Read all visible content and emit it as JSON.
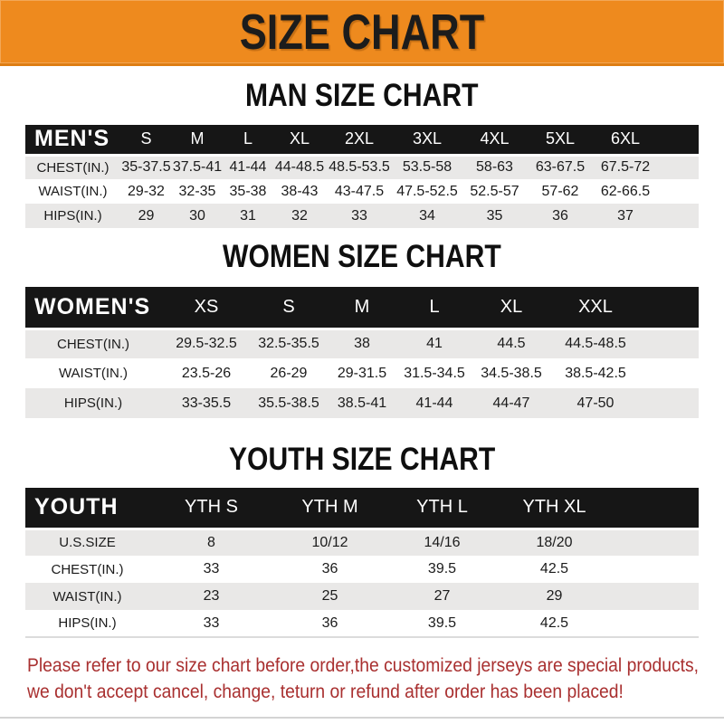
{
  "banner": {
    "title": "SIZE CHART"
  },
  "colors": {
    "banner_orange": "#EE8A1E",
    "banner_edge": "#DE7D12",
    "header_black": "#161616",
    "row_gray": "#E9E8E7",
    "row_white": "#FFFFFF",
    "footer_red": "#A93030"
  },
  "sections": {
    "men": {
      "heading": "MAN SIZE CHART",
      "table": {
        "corner_label": "MEN'S",
        "size_headers": [
          "S",
          "M",
          "L",
          "XL",
          "2XL",
          "3XL",
          "4XL",
          "5XL",
          "6XL"
        ],
        "rows": [
          {
            "label": "CHEST(IN.)",
            "values": [
              "35-37.5",
              "37.5-41",
              "41-44",
              "44-48.5",
              "48.5-53.5",
              "53.5-58",
              "58-63",
              "63-67.5",
              "67.5-72"
            ]
          },
          {
            "label": "WAIST(IN.)",
            "values": [
              "29-32",
              "32-35",
              "35-38",
              "38-43",
              "43-47.5",
              "47.5-52.5",
              "52.5-57",
              "57-62",
              "62-66.5"
            ]
          },
          {
            "label": "HIPS(IN.)",
            "values": [
              "29",
              "30",
              "31",
              "32",
              "33",
              "34",
              "35",
              "36",
              "37"
            ]
          }
        ]
      }
    },
    "women": {
      "heading": "WOMEN SIZE CHART",
      "table": {
        "corner_label": "WOMEN'S",
        "size_headers": [
          "XS",
          "S",
          "M",
          "L",
          "XL",
          "XXL"
        ],
        "rows": [
          {
            "label": "CHEST(IN.)",
            "values": [
              "29.5-32.5",
              "32.5-35.5",
              "38",
              "41",
              "44.5",
              "44.5-48.5"
            ]
          },
          {
            "label": "WAIST(IN.)",
            "values": [
              "23.5-26",
              "26-29",
              "29-31.5",
              "31.5-34.5",
              "34.5-38.5",
              "38.5-42.5"
            ]
          },
          {
            "label": "HIPS(IN.)",
            "values": [
              "33-35.5",
              "35.5-38.5",
              "38.5-41",
              "41-44",
              "44-47",
              "47-50"
            ]
          }
        ]
      }
    },
    "youth": {
      "heading": "YOUTH SIZE CHART",
      "table": {
        "corner_label": "YOUTH",
        "size_headers": [
          "YTH S",
          "YTH M",
          "YTH L",
          "YTH XL"
        ],
        "rows": [
          {
            "label": "U.S.SIZE",
            "values": [
              "8",
              "10/12",
              "14/16",
              "18/20"
            ]
          },
          {
            "label": "CHEST(IN.)",
            "values": [
              "33",
              "36",
              "39.5",
              "42.5"
            ]
          },
          {
            "label": "WAIST(IN.)",
            "values": [
              "23",
              "25",
              "27",
              "29"
            ]
          },
          {
            "label": "HIPS(IN.)",
            "values": [
              "33",
              "36",
              "39.5",
              "42.5"
            ]
          }
        ]
      }
    }
  },
  "footer": {
    "line1": "Please refer to our size chart before order,the customized jerseys are special products,",
    "line2": "we don't accept cancel, change, teturn or refund after order has been placed!"
  }
}
